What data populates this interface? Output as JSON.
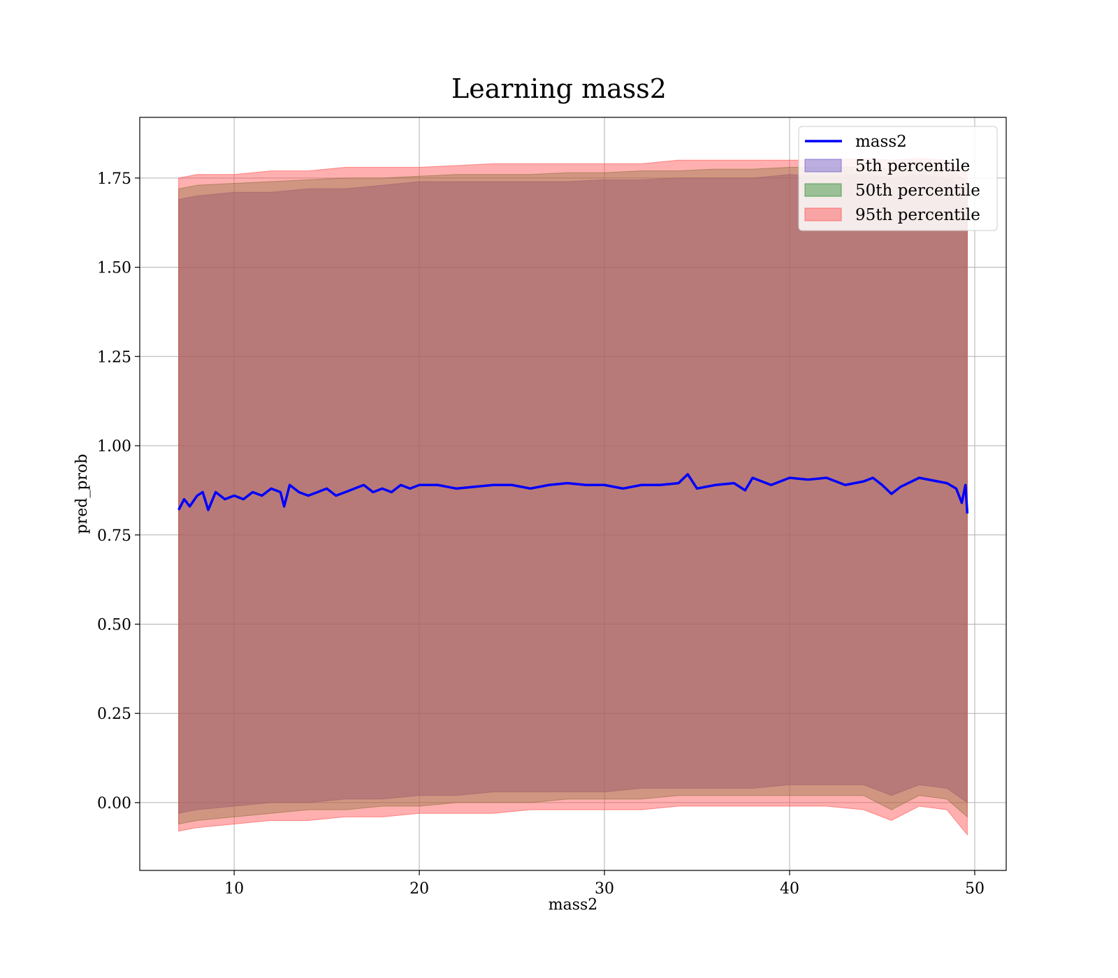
{
  "chart_data": {
    "type": "area",
    "title": "Learning mass2",
    "xlabel": "mass2",
    "ylabel": "pred_prob",
    "xlim": [
      4.9,
      51.7
    ],
    "ylim": [
      -0.19,
      1.92
    ],
    "x_ticks": [
      10,
      20,
      30,
      40,
      50
    ],
    "y_ticks": [
      0.0,
      0.25,
      0.5,
      0.75,
      1.0,
      1.25,
      1.5,
      1.75
    ],
    "y_tick_labels": [
      "0.00",
      "0.25",
      "0.50",
      "0.75",
      "1.00",
      "1.25",
      "1.50",
      "1.75"
    ],
    "grid": true,
    "legend_position": "top-right",
    "line": {
      "name": "mass2",
      "color": "#0000ff",
      "points": [
        [
          7.0,
          0.82
        ],
        [
          7.3,
          0.85
        ],
        [
          7.6,
          0.83
        ],
        [
          8.0,
          0.86
        ],
        [
          8.3,
          0.87
        ],
        [
          8.6,
          0.82
        ],
        [
          9.0,
          0.87
        ],
        [
          9.5,
          0.85
        ],
        [
          10.0,
          0.86
        ],
        [
          10.5,
          0.85
        ],
        [
          11.0,
          0.87
        ],
        [
          11.5,
          0.86
        ],
        [
          12.0,
          0.88
        ],
        [
          12.5,
          0.87
        ],
        [
          12.7,
          0.83
        ],
        [
          13.0,
          0.89
        ],
        [
          13.5,
          0.87
        ],
        [
          14.0,
          0.86
        ],
        [
          14.5,
          0.87
        ],
        [
          15.0,
          0.88
        ],
        [
          15.5,
          0.86
        ],
        [
          16.0,
          0.87
        ],
        [
          16.5,
          0.88
        ],
        [
          17.0,
          0.89
        ],
        [
          17.5,
          0.87
        ],
        [
          18.0,
          0.88
        ],
        [
          18.5,
          0.87
        ],
        [
          19.0,
          0.89
        ],
        [
          19.5,
          0.88
        ],
        [
          20.0,
          0.89
        ],
        [
          21.0,
          0.89
        ],
        [
          22.0,
          0.88
        ],
        [
          23.0,
          0.885
        ],
        [
          24.0,
          0.89
        ],
        [
          25.0,
          0.89
        ],
        [
          26.0,
          0.88
        ],
        [
          27.0,
          0.89
        ],
        [
          28.0,
          0.895
        ],
        [
          29.0,
          0.89
        ],
        [
          30.0,
          0.89
        ],
        [
          31.0,
          0.88
        ],
        [
          32.0,
          0.89
        ],
        [
          33.0,
          0.89
        ],
        [
          34.0,
          0.895
        ],
        [
          34.5,
          0.92
        ],
        [
          35.0,
          0.88
        ],
        [
          36.0,
          0.89
        ],
        [
          37.0,
          0.895
        ],
        [
          37.6,
          0.875
        ],
        [
          38.0,
          0.91
        ],
        [
          39.0,
          0.89
        ],
        [
          40.0,
          0.91
        ],
        [
          41.0,
          0.905
        ],
        [
          42.0,
          0.91
        ],
        [
          43.0,
          0.89
        ],
        [
          44.0,
          0.9
        ],
        [
          44.5,
          0.91
        ],
        [
          45.0,
          0.89
        ],
        [
          45.5,
          0.865
        ],
        [
          46.0,
          0.885
        ],
        [
          47.0,
          0.91
        ],
        [
          48.0,
          0.9
        ],
        [
          48.5,
          0.895
        ],
        [
          49.0,
          0.88
        ],
        [
          49.3,
          0.84
        ],
        [
          49.5,
          0.89
        ],
        [
          49.6,
          0.81
        ]
      ]
    },
    "bands": [
      {
        "name": "5th percentile",
        "color": "#6a5acd",
        "opacity": 0.5,
        "x": [
          7.0,
          8.0,
          10.0,
          12.0,
          14.0,
          16.0,
          18.0,
          20.0,
          22.0,
          24.0,
          26.0,
          28.0,
          30.0,
          32.0,
          34.0,
          36.0,
          38.0,
          40.0,
          42.0,
          44.0,
          45.5,
          47.0,
          48.5,
          49.6
        ],
        "upper": [
          1.69,
          1.7,
          1.71,
          1.71,
          1.72,
          1.72,
          1.73,
          1.74,
          1.74,
          1.74,
          1.74,
          1.74,
          1.745,
          1.745,
          1.75,
          1.75,
          1.75,
          1.76,
          1.755,
          1.76,
          1.75,
          1.76,
          1.75,
          1.72
        ],
        "lower": [
          -0.03,
          -0.02,
          -0.01,
          0.0,
          0.0,
          0.01,
          0.01,
          0.02,
          0.02,
          0.03,
          0.03,
          0.03,
          0.03,
          0.04,
          0.04,
          0.04,
          0.04,
          0.05,
          0.05,
          0.05,
          0.02,
          0.05,
          0.04,
          0.0
        ]
      },
      {
        "name": "50th percentile",
        "color": "#2e8b2e",
        "opacity": 0.4,
        "x": [
          7.0,
          8.0,
          10.0,
          12.0,
          14.0,
          16.0,
          18.0,
          20.0,
          22.0,
          24.0,
          26.0,
          28.0,
          30.0,
          32.0,
          34.0,
          36.0,
          38.0,
          40.0,
          42.0,
          44.0,
          45.5,
          47.0,
          48.5,
          49.6
        ],
        "upper": [
          1.72,
          1.73,
          1.735,
          1.74,
          1.745,
          1.75,
          1.75,
          1.755,
          1.76,
          1.76,
          1.76,
          1.765,
          1.765,
          1.77,
          1.77,
          1.775,
          1.775,
          1.78,
          1.78,
          1.78,
          1.775,
          1.785,
          1.78,
          1.74
        ],
        "lower": [
          -0.06,
          -0.05,
          -0.04,
          -0.03,
          -0.02,
          -0.02,
          -0.01,
          -0.01,
          0.0,
          0.0,
          0.0,
          0.01,
          0.01,
          0.01,
          0.02,
          0.02,
          0.02,
          0.02,
          0.02,
          0.02,
          -0.02,
          0.02,
          0.01,
          -0.04
        ]
      },
      {
        "name": "95th percentile",
        "color": "#ff4d4d",
        "opacity": 0.45,
        "x": [
          7.0,
          8.0,
          10.0,
          12.0,
          14.0,
          16.0,
          18.0,
          20.0,
          22.0,
          24.0,
          26.0,
          28.0,
          30.0,
          32.0,
          34.0,
          36.0,
          38.0,
          40.0,
          42.0,
          44.0,
          45.5,
          47.0,
          48.5,
          49.6
        ],
        "upper": [
          1.75,
          1.76,
          1.76,
          1.77,
          1.77,
          1.78,
          1.78,
          1.78,
          1.785,
          1.79,
          1.79,
          1.79,
          1.79,
          1.79,
          1.8,
          1.8,
          1.8,
          1.8,
          1.8,
          1.805,
          1.8,
          1.805,
          1.8,
          1.76
        ],
        "lower": [
          -0.08,
          -0.07,
          -0.06,
          -0.05,
          -0.05,
          -0.04,
          -0.04,
          -0.03,
          -0.03,
          -0.03,
          -0.02,
          -0.02,
          -0.02,
          -0.02,
          -0.01,
          -0.01,
          -0.01,
          -0.01,
          -0.01,
          -0.02,
          -0.05,
          -0.01,
          -0.02,
          -0.09
        ]
      }
    ],
    "legend": [
      {
        "label": "mass2",
        "kind": "line",
        "color": "#0000ff"
      },
      {
        "label": "5th percentile",
        "kind": "patch",
        "color": "#6a5acd"
      },
      {
        "label": "50th percentile",
        "kind": "patch",
        "color": "#2e8b2e"
      },
      {
        "label": "95th percentile",
        "kind": "patch",
        "color": "#ff4d4d"
      }
    ]
  }
}
